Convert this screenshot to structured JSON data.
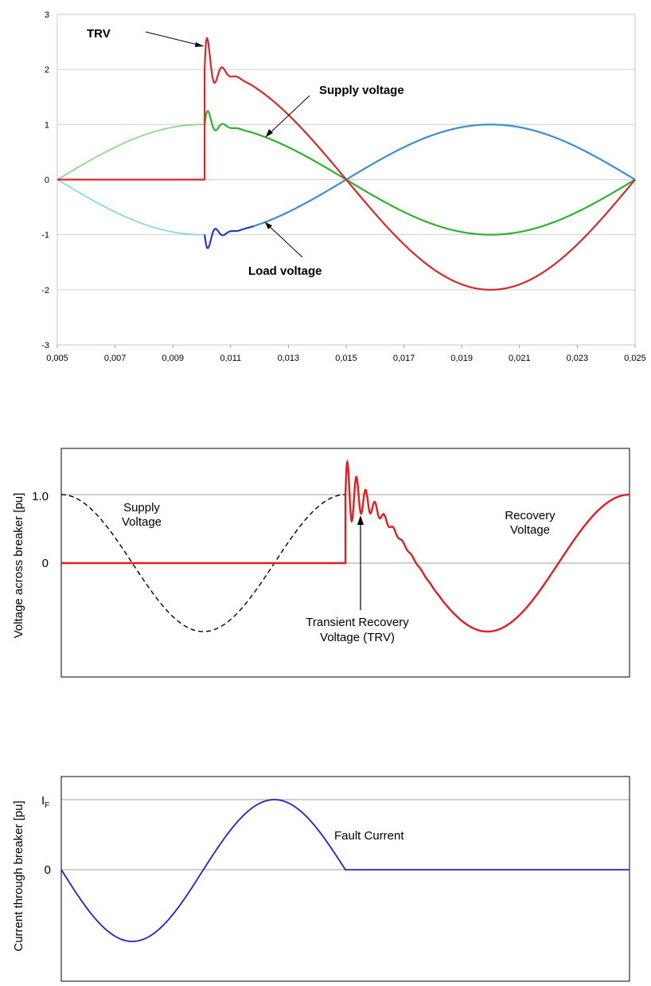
{
  "chart_data": [
    {
      "type": "line",
      "title": "",
      "xlabel": "",
      "ylabel": "",
      "xlim": [
        0.005,
        0.025
      ],
      "ylim": [
        -3,
        3
      ],
      "grid": true,
      "x_ticks": [
        "0,005",
        "0,007",
        "0,009",
        "0,011",
        "0,013",
        "0,015",
        "0,017",
        "0,019",
        "0,021",
        "0,023",
        "0,025"
      ],
      "y_ticks": [
        "-3",
        "-2",
        "-1",
        "0",
        "1",
        "2",
        "3"
      ],
      "annotations": [
        "TRV",
        "Supply voltage",
        "Load voltage"
      ],
      "series": [
        {
          "color": "#d42a2a",
          "x": [
            0.005,
            0.0101,
            0.0101,
            0.0103,
            0.0105,
            0.0107,
            0.011,
            0.015,
            0.02,
            0.025
          ],
          "y": [
            0,
            0,
            2.0,
            2.78,
            1.85,
            2.05,
            1.9,
            0,
            -2.0,
            0
          ]
        },
        {
          "color": "#30b030",
          "x": [
            0.005,
            0.01,
            0.0103,
            0.0106,
            0.011,
            0.015,
            0.02,
            0.025
          ],
          "y": [
            0,
            1.0,
            1.38,
            0.92,
            0.97,
            0,
            -1.0,
            0
          ]
        },
        {
          "color": "#3b8fd0",
          "x": [
            0.005,
            0.01,
            0.0103,
            0.0106,
            0.011,
            0.015,
            0.02,
            0.025
          ],
          "y": [
            0,
            -1.0,
            -1.38,
            -0.92,
            -0.97,
            0,
            1.0,
            0
          ]
        }
      ]
    },
    {
      "type": "line",
      "ylabel": "Voltage across breaker [pu]",
      "y_ticks": [
        "0",
        "1.0"
      ],
      "ylim": [
        -1.65,
        1.65
      ],
      "grid": true,
      "annotations": [
        {
          "text": [
            "Supply",
            "Voltage"
          ]
        },
        {
          "text": [
            "Recovery",
            "Voltage"
          ]
        },
        {
          "text": [
            "Transient Recovery",
            "Voltage (TRV)"
          ]
        }
      ],
      "series": [
        {
          "style": "dashed",
          "color": "#000000",
          "x": [
            0,
            0.5,
            1.0,
            1.5,
            2.0
          ],
          "y": [
            1.0,
            0,
            -1.0,
            0,
            1.0
          ]
        },
        {
          "style": "solid",
          "color": "#e02020",
          "x": [
            0,
            2.0,
            2.0,
            2.05,
            2.2,
            2.4,
            2.5,
            3.0,
            3.5,
            4.0
          ],
          "y": [
            0,
            0,
            1.0,
            1.5,
            0.7,
            0.45,
            0.38,
            -1.0,
            0,
            1.0
          ]
        }
      ]
    },
    {
      "type": "line",
      "ylabel": "Current through breaker [pu]",
      "y_ticks": [
        "0",
        "I",
        "F"
      ],
      "ylim": [
        -1.95,
        1.2
      ],
      "grid": true,
      "annotations": [
        "Fault Current"
      ],
      "series": [
        {
          "color": "#2222cc",
          "x": [
            0,
            0.5,
            1.0,
            1.5,
            2.0,
            4.0
          ],
          "y": [
            0,
            -1.0,
            0,
            1.0,
            0,
            0
          ]
        }
      ]
    }
  ]
}
